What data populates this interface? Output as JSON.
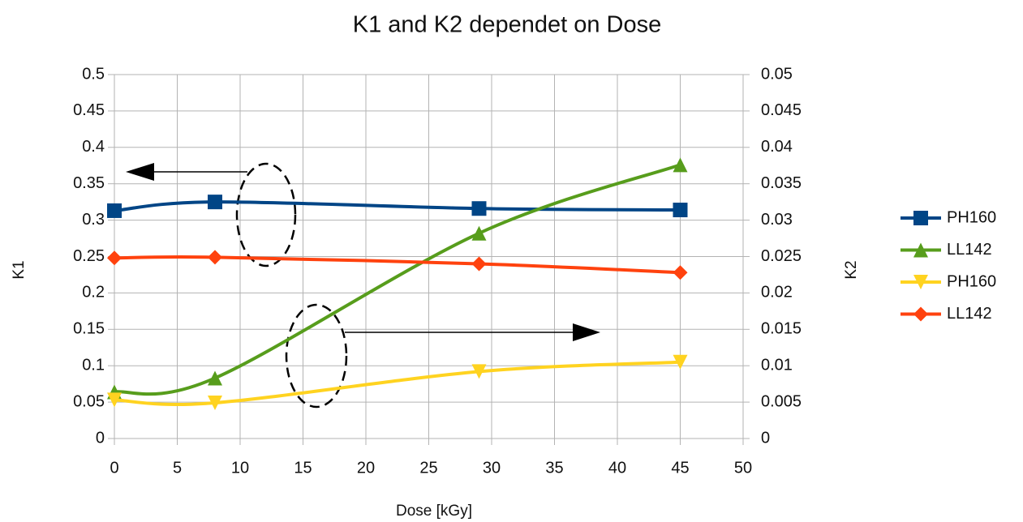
{
  "chart_data": {
    "type": "line",
    "title": "K1 and K2 dependet on Dose",
    "xlabel": "Dose [kGy]",
    "ylabel": "K1",
    "y2label": "K2",
    "x": [
      0,
      8,
      29,
      45
    ],
    "series": [
      {
        "name": "PH160",
        "color": "#004586",
        "marker": "square",
        "axis": "y",
        "values": [
          0.313,
          0.325,
          0.316,
          0.314
        ]
      },
      {
        "name": "LL142",
        "color": "#579d1c",
        "marker": "triangle-up",
        "axis": "y2",
        "values": [
          0.0064,
          0.0083,
          0.0282,
          0.0376
        ]
      },
      {
        "name": "PH160",
        "color": "#ffd320",
        "marker": "triangle-down",
        "axis": "y2",
        "values": [
          0.0053,
          0.0049,
          0.0092,
          0.0105
        ]
      },
      {
        "name": "LL142",
        "color": "#ff420e",
        "marker": "diamond",
        "axis": "y",
        "values": [
          0.248,
          0.249,
          0.24,
          0.228
        ]
      }
    ],
    "xlim": [
      0,
      50
    ],
    "xticks": [
      0,
      5,
      10,
      15,
      20,
      25,
      30,
      35,
      40,
      45,
      50
    ],
    "ylim": [
      0,
      0.5
    ],
    "yticks": [
      0,
      0.05,
      0.1,
      0.15,
      0.2,
      0.25,
      0.3,
      0.35,
      0.4,
      0.45,
      0.5
    ],
    "y2lim": [
      0,
      0.05
    ],
    "y2ticks": [
      0,
      0.005,
      0.01,
      0.015,
      0.02,
      0.025,
      0.03,
      0.035,
      0.04,
      0.045,
      0.05
    ],
    "grid": true,
    "legend": "right"
  }
}
